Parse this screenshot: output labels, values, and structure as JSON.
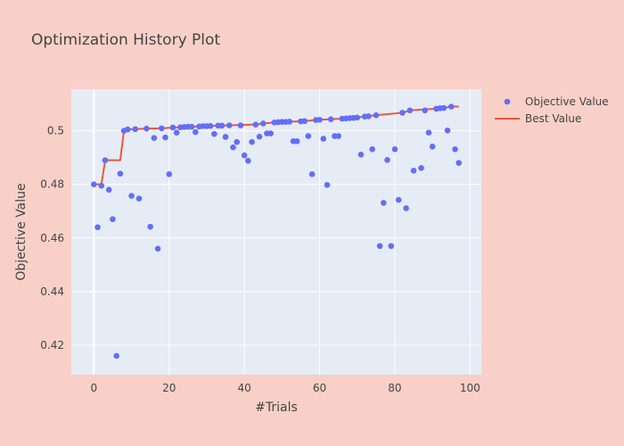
{
  "colors": {
    "page_bg": "#f8d0c8",
    "plot_bg": "#e5ecf6",
    "grid": "#ffffff",
    "objective": "#636efa",
    "best": "#ef553b"
  },
  "chart_data": {
    "type": "scatter",
    "title": "Optimization History Plot",
    "xlabel": "#Trials",
    "ylabel": "Objective Value",
    "xlim": [
      -6,
      103
    ],
    "ylim": [
      0.409,
      0.5155
    ],
    "xticks": [
      0,
      20,
      40,
      60,
      80,
      100
    ],
    "yticks": [
      0.42,
      0.44,
      0.46,
      0.48,
      0.5
    ],
    "grid": true,
    "legend_position": "top-right",
    "series": [
      {
        "name": "Objective Value",
        "mode": "markers",
        "points": [
          [
            0,
            0.48
          ],
          [
            1,
            0.464
          ],
          [
            2,
            0.4795
          ],
          [
            3,
            0.489
          ],
          [
            4,
            0.478
          ],
          [
            5,
            0.467
          ],
          [
            6,
            0.416
          ],
          [
            7,
            0.484
          ],
          [
            8,
            0.5
          ],
          [
            9,
            0.5005
          ],
          [
            10,
            0.4757
          ],
          [
            11,
            0.5006
          ],
          [
            12,
            0.4747
          ],
          [
            14,
            0.5008
          ],
          [
            15,
            0.4642
          ],
          [
            16,
            0.4973
          ],
          [
            17,
            0.456
          ],
          [
            18,
            0.5009
          ],
          [
            19,
            0.4975
          ],
          [
            20,
            0.4838
          ],
          [
            21,
            0.5012
          ],
          [
            22,
            0.4993
          ],
          [
            23,
            0.5013
          ],
          [
            24,
            0.5014
          ],
          [
            25,
            0.5015
          ],
          [
            26,
            0.5015
          ],
          [
            27,
            0.4995
          ],
          [
            28,
            0.5016
          ],
          [
            29,
            0.5017
          ],
          [
            30,
            0.5017
          ],
          [
            31,
            0.5018
          ],
          [
            32,
            0.4988
          ],
          [
            33,
            0.5019
          ],
          [
            34,
            0.5019
          ],
          [
            35,
            0.4977
          ],
          [
            36,
            0.502
          ],
          [
            37,
            0.4938
          ],
          [
            38,
            0.4958
          ],
          [
            39,
            0.502
          ],
          [
            40,
            0.4908
          ],
          [
            41,
            0.4888
          ],
          [
            42,
            0.4958
          ],
          [
            43,
            0.5023
          ],
          [
            44,
            0.4978
          ],
          [
            45,
            0.5027
          ],
          [
            46,
            0.499
          ],
          [
            47,
            0.499
          ],
          [
            48,
            0.5031
          ],
          [
            49,
            0.5032
          ],
          [
            50,
            0.5033
          ],
          [
            51,
            0.5033
          ],
          [
            52,
            0.5034
          ],
          [
            53,
            0.4961
          ],
          [
            54,
            0.4961
          ],
          [
            55,
            0.5035
          ],
          [
            56,
            0.5036
          ],
          [
            57,
            0.498
          ],
          [
            58,
            0.4838
          ],
          [
            59,
            0.504
          ],
          [
            60,
            0.5041
          ],
          [
            61,
            0.497
          ],
          [
            62,
            0.4798
          ],
          [
            63,
            0.5043
          ],
          [
            64,
            0.498
          ],
          [
            65,
            0.498
          ],
          [
            66,
            0.5045
          ],
          [
            67,
            0.5046
          ],
          [
            68,
            0.5047
          ],
          [
            69,
            0.5048
          ],
          [
            70,
            0.5049
          ],
          [
            71,
            0.4911
          ],
          [
            72,
            0.5053
          ],
          [
            73,
            0.5054
          ],
          [
            74,
            0.4931
          ],
          [
            75,
            0.5058
          ],
          [
            76,
            0.457
          ],
          [
            77,
            0.4731
          ],
          [
            78,
            0.4891
          ],
          [
            79,
            0.457
          ],
          [
            80,
            0.4931
          ],
          [
            81,
            0.4742
          ],
          [
            82,
            0.5067
          ],
          [
            83,
            0.4711
          ],
          [
            84,
            0.5076
          ],
          [
            85,
            0.4851
          ],
          [
            87,
            0.4861
          ],
          [
            88,
            0.5076
          ],
          [
            89,
            0.4993
          ],
          [
            90,
            0.4941
          ],
          [
            91,
            0.5082
          ],
          [
            92,
            0.5084
          ],
          [
            93,
            0.5085
          ],
          [
            94,
            0.5001
          ],
          [
            95,
            0.509
          ],
          [
            96,
            0.4931
          ],
          [
            97,
            0.488
          ]
        ]
      },
      {
        "name": "Best Value",
        "mode": "lines",
        "points": [
          [
            0,
            0.48
          ],
          [
            2,
            0.48
          ],
          [
            3,
            0.489
          ],
          [
            7,
            0.489
          ],
          [
            8,
            0.5
          ],
          [
            9,
            0.5005
          ],
          [
            11,
            0.5006
          ],
          [
            14,
            0.5008
          ],
          [
            18,
            0.5009
          ],
          [
            21,
            0.5012
          ],
          [
            23,
            0.5013
          ],
          [
            24,
            0.5014
          ],
          [
            25,
            0.5015
          ],
          [
            28,
            0.5016
          ],
          [
            29,
            0.5017
          ],
          [
            31,
            0.5018
          ],
          [
            33,
            0.5019
          ],
          [
            36,
            0.502
          ],
          [
            43,
            0.5023
          ],
          [
            45,
            0.5027
          ],
          [
            48,
            0.5031
          ],
          [
            49,
            0.5032
          ],
          [
            50,
            0.5033
          ],
          [
            52,
            0.5034
          ],
          [
            55,
            0.5035
          ],
          [
            56,
            0.5036
          ],
          [
            59,
            0.504
          ],
          [
            60,
            0.5041
          ],
          [
            63,
            0.5043
          ],
          [
            66,
            0.5045
          ],
          [
            67,
            0.5046
          ],
          [
            68,
            0.5047
          ],
          [
            69,
            0.5048
          ],
          [
            70,
            0.5049
          ],
          [
            72,
            0.5053
          ],
          [
            73,
            0.5054
          ],
          [
            75,
            0.5058
          ],
          [
            82,
            0.5067
          ],
          [
            84,
            0.5076
          ],
          [
            91,
            0.5082
          ],
          [
            92,
            0.5084
          ],
          [
            93,
            0.5085
          ],
          [
            95,
            0.509
          ],
          [
            97,
            0.509
          ]
        ]
      }
    ]
  }
}
